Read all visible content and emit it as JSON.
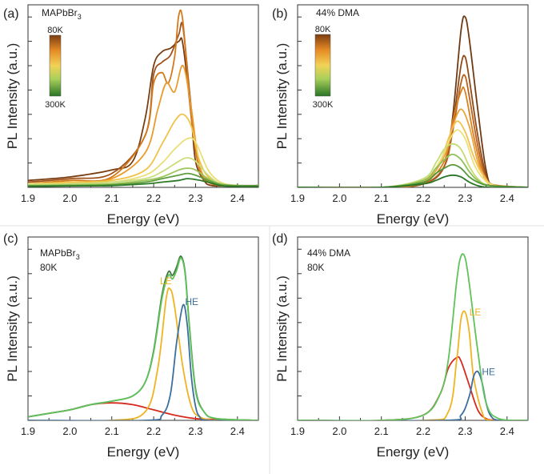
{
  "chart_data": [
    {
      "panel_label": "(a)",
      "type": "line",
      "sample": "MAPbBr",
      "sample_sub": "3",
      "legend": {
        "type": "colorbar",
        "top_label": "80K",
        "bottom_label": "300K"
      },
      "xlabel": "Energy (eV)",
      "ylabel": "PL Intensity (a.u.)",
      "xlim": [
        1.9,
        2.45
      ],
      "ylim": [
        0,
        1.05
      ],
      "xticks": [
        "1.9",
        "2.0",
        "2.1",
        "2.2",
        "2.3",
        "2.4"
      ],
      "series": [
        {
          "color": "#7a3d12",
          "x": [
            1.9,
            2.0,
            2.1,
            2.15,
            2.18,
            2.2,
            2.22,
            2.24,
            2.26,
            2.27,
            2.29,
            2.3,
            2.32,
            2.34,
            2.4,
            2.45
          ],
          "y": [
            0.04,
            0.06,
            0.1,
            0.15,
            0.4,
            0.7,
            0.78,
            0.8,
            0.84,
            0.82,
            0.4,
            0.15,
            0.04,
            0.01,
            0.01,
            0.01
          ]
        },
        {
          "color": "#a0521b",
          "x": [
            1.9,
            2.0,
            2.1,
            2.18,
            2.2,
            2.22,
            2.24,
            2.26,
            2.27,
            2.29,
            2.31,
            2.34,
            2.4,
            2.45
          ],
          "y": [
            0.03,
            0.05,
            0.08,
            0.3,
            0.65,
            0.72,
            0.76,
            0.88,
            0.92,
            0.45,
            0.1,
            0.02,
            0.01,
            0.01
          ]
        },
        {
          "color": "#d2791c",
          "x": [
            1.9,
            2.0,
            2.1,
            2.18,
            2.2,
            2.22,
            2.235,
            2.25,
            2.26,
            2.27,
            2.29,
            2.31,
            2.34,
            2.4,
            2.45
          ],
          "y": [
            0.02,
            0.04,
            0.06,
            0.3,
            0.6,
            0.66,
            0.6,
            0.75,
            0.99,
            0.95,
            0.4,
            0.1,
            0.02,
            0.01,
            0.01
          ]
        },
        {
          "color": "#e99b2e",
          "x": [
            1.9,
            2.0,
            2.1,
            2.18,
            2.21,
            2.23,
            2.25,
            2.27,
            2.29,
            2.31,
            2.34,
            2.4,
            2.45
          ],
          "y": [
            0.02,
            0.03,
            0.05,
            0.2,
            0.45,
            0.6,
            0.55,
            0.7,
            0.45,
            0.12,
            0.03,
            0.01,
            0.01
          ]
        },
        {
          "color": "#f0c347",
          "x": [
            1.9,
            2.0,
            2.1,
            2.18,
            2.22,
            2.25,
            2.27,
            2.29,
            2.31,
            2.34,
            2.4,
            2.45
          ],
          "y": [
            0.02,
            0.03,
            0.04,
            0.1,
            0.25,
            0.38,
            0.42,
            0.35,
            0.15,
            0.04,
            0.01,
            0.01
          ]
        },
        {
          "color": "#eadf77",
          "x": [
            1.9,
            2.0,
            2.1,
            2.18,
            2.22,
            2.25,
            2.28,
            2.3,
            2.33,
            2.36,
            2.4,
            2.45
          ],
          "y": [
            0.02,
            0.02,
            0.03,
            0.07,
            0.14,
            0.22,
            0.28,
            0.26,
            0.1,
            0.03,
            0.01,
            0.01
          ]
        },
        {
          "color": "#c9dd79",
          "x": [
            1.9,
            2.0,
            2.1,
            2.18,
            2.22,
            2.26,
            2.28,
            2.3,
            2.33,
            2.36,
            2.4,
            2.45
          ],
          "y": [
            0.015,
            0.02,
            0.03,
            0.05,
            0.09,
            0.15,
            0.17,
            0.15,
            0.07,
            0.02,
            0.01,
            0.01
          ]
        },
        {
          "color": "#9cc55c",
          "x": [
            1.9,
            2.0,
            2.1,
            2.18,
            2.22,
            2.26,
            2.28,
            2.3,
            2.33,
            2.36,
            2.4,
            2.45
          ],
          "y": [
            0.01,
            0.015,
            0.02,
            0.04,
            0.06,
            0.1,
            0.11,
            0.1,
            0.05,
            0.02,
            0.01,
            0.01
          ]
        },
        {
          "color": "#5e9e3c",
          "x": [
            1.9,
            2.0,
            2.1,
            2.18,
            2.22,
            2.26,
            2.28,
            2.3,
            2.33,
            2.36,
            2.4,
            2.45
          ],
          "y": [
            0.01,
            0.01,
            0.015,
            0.03,
            0.05,
            0.07,
            0.08,
            0.07,
            0.04,
            0.015,
            0.01,
            0.01
          ]
        },
        {
          "color": "#2f7a28",
          "x": [
            1.9,
            2.0,
            2.1,
            2.18,
            2.22,
            2.26,
            2.28,
            2.3,
            2.33,
            2.36,
            2.4,
            2.45
          ],
          "y": [
            0.005,
            0.008,
            0.01,
            0.02,
            0.03,
            0.04,
            0.05,
            0.045,
            0.03,
            0.01,
            0.005,
            0.005
          ]
        }
      ]
    },
    {
      "panel_label": "(b)",
      "type": "line",
      "sample": "44% DMA",
      "sample_sub": "",
      "legend": {
        "type": "colorbar",
        "top_label": "80K",
        "bottom_label": "300K"
      },
      "xlabel": "Energy (eV)",
      "ylabel": "PL Intensity (a.u.)",
      "xlim": [
        1.9,
        2.45
      ],
      "ylim": [
        0,
        1.05
      ],
      "xticks": [
        "1.9",
        "2.0",
        "2.1",
        "2.2",
        "2.3",
        "2.4"
      ],
      "series": [
        {
          "color": "#6e3a12",
          "x": [
            1.9,
            2.1,
            2.2,
            2.25,
            2.27,
            2.29,
            2.3,
            2.31,
            2.33,
            2.35,
            2.37,
            2.45
          ],
          "y": [
            0.0,
            0.0,
            0.02,
            0.12,
            0.4,
            0.9,
            0.98,
            0.85,
            0.45,
            0.1,
            0.01,
            0.0
          ]
        },
        {
          "color": "#8f4a18",
          "x": [
            1.9,
            2.1,
            2.2,
            2.25,
            2.27,
            2.29,
            2.3,
            2.31,
            2.33,
            2.35,
            2.37,
            2.45
          ],
          "y": [
            0.0,
            0.0,
            0.02,
            0.12,
            0.35,
            0.7,
            0.75,
            0.62,
            0.3,
            0.07,
            0.01,
            0.0
          ]
        },
        {
          "color": "#b8611d",
          "x": [
            1.9,
            2.1,
            2.2,
            2.25,
            2.27,
            2.29,
            2.3,
            2.31,
            2.33,
            2.35,
            2.37,
            2.45
          ],
          "y": [
            0.0,
            0.0,
            0.02,
            0.12,
            0.32,
            0.6,
            0.64,
            0.52,
            0.24,
            0.05,
            0.01,
            0.0
          ]
        },
        {
          "color": "#d9801f",
          "x": [
            1.9,
            2.1,
            2.2,
            2.25,
            2.27,
            2.29,
            2.3,
            2.32,
            2.34,
            2.36,
            2.45
          ],
          "y": [
            0.0,
            0.0,
            0.03,
            0.15,
            0.38,
            0.55,
            0.55,
            0.3,
            0.1,
            0.02,
            0.0
          ]
        },
        {
          "color": "#eba03a",
          "x": [
            1.9,
            2.1,
            2.2,
            2.25,
            2.27,
            2.29,
            2.31,
            2.33,
            2.35,
            2.37,
            2.45
          ],
          "y": [
            0.0,
            0.0,
            0.03,
            0.18,
            0.35,
            0.45,
            0.35,
            0.15,
            0.05,
            0.01,
            0.0
          ]
        },
        {
          "color": "#f2c252",
          "x": [
            1.9,
            2.1,
            2.2,
            2.24,
            2.26,
            2.28,
            2.3,
            2.32,
            2.34,
            2.37,
            2.45
          ],
          "y": [
            0.0,
            0.0,
            0.04,
            0.15,
            0.28,
            0.38,
            0.32,
            0.18,
            0.08,
            0.01,
            0.0
          ]
        },
        {
          "color": "#ece07a",
          "x": [
            1.9,
            2.1,
            2.2,
            2.24,
            2.26,
            2.28,
            2.3,
            2.32,
            2.34,
            2.37,
            2.45
          ],
          "y": [
            0.0,
            0.0,
            0.04,
            0.15,
            0.26,
            0.33,
            0.28,
            0.14,
            0.06,
            0.01,
            0.0
          ]
        },
        {
          "color": "#c4dc72",
          "x": [
            1.9,
            2.1,
            2.2,
            2.23,
            2.25,
            2.27,
            2.29,
            2.31,
            2.33,
            2.36,
            2.45
          ],
          "y": [
            0.0,
            0.0,
            0.05,
            0.14,
            0.22,
            0.25,
            0.22,
            0.12,
            0.05,
            0.01,
            0.0
          ]
        },
        {
          "color": "#8fc156",
          "x": [
            1.9,
            2.1,
            2.2,
            2.23,
            2.25,
            2.27,
            2.29,
            2.31,
            2.33,
            2.36,
            2.45
          ],
          "y": [
            0.0,
            0.0,
            0.04,
            0.11,
            0.16,
            0.19,
            0.16,
            0.09,
            0.04,
            0.01,
            0.0
          ]
        },
        {
          "color": "#56983a",
          "x": [
            1.9,
            2.1,
            2.2,
            2.23,
            2.25,
            2.27,
            2.29,
            2.31,
            2.33,
            2.36,
            2.45
          ],
          "y": [
            0.0,
            0.0,
            0.03,
            0.08,
            0.11,
            0.13,
            0.11,
            0.06,
            0.03,
            0.01,
            0.0
          ]
        },
        {
          "color": "#2a7426",
          "x": [
            1.9,
            2.1,
            2.2,
            2.23,
            2.25,
            2.27,
            2.29,
            2.31,
            2.33,
            2.36,
            2.45
          ],
          "y": [
            0.0,
            0.0,
            0.02,
            0.04,
            0.06,
            0.07,
            0.06,
            0.03,
            0.01,
            0.0,
            0.0
          ]
        }
      ]
    },
    {
      "panel_label": "(c)",
      "type": "line",
      "sample": "MAPbBr",
      "sample_sub": "3",
      "sample_temp": "80K",
      "xlabel": "Energy (eV)",
      "ylabel": "PL Intensity (a.u.)",
      "xlim": [
        1.9,
        2.45
      ],
      "ylim": [
        0,
        1.05
      ],
      "xticks": [
        "1.9",
        "2.0",
        "2.1",
        "2.2",
        "2.3",
        "2.4"
      ],
      "annotations": [
        {
          "text": "LE",
          "x": 2.215,
          "y": 0.78,
          "color": "#f0b323"
        },
        {
          "text": "HE",
          "x": 2.275,
          "y": 0.66,
          "color": "#3c6e9e"
        }
      ],
      "series": [
        {
          "name": "",
          "color": "#d62a1e",
          "x": [
            1.9,
            1.95,
            2.0,
            2.05,
            2.1,
            2.15,
            2.2,
            2.25,
            2.3,
            2.35,
            2.45
          ],
          "y": [
            0.02,
            0.04,
            0.06,
            0.09,
            0.1,
            0.09,
            0.06,
            0.03,
            0.01,
            0.005,
            0.0
          ]
        },
        {
          "name": "LE",
          "color": "#f0b323",
          "x": [
            1.9,
            2.1,
            2.18,
            2.21,
            2.23,
            2.24,
            2.25,
            2.27,
            2.29,
            2.31,
            2.35,
            2.45
          ],
          "y": [
            0.0,
            0.0,
            0.05,
            0.3,
            0.7,
            0.75,
            0.65,
            0.3,
            0.08,
            0.02,
            0.0,
            0.0
          ]
        },
        {
          "name": "HE",
          "color": "#3c6e9e",
          "x": [
            1.9,
            2.18,
            2.22,
            2.24,
            2.255,
            2.27,
            2.28,
            2.29,
            2.3,
            2.31,
            2.33,
            2.45
          ],
          "y": [
            0.0,
            0.0,
            0.03,
            0.15,
            0.45,
            0.66,
            0.55,
            0.25,
            0.08,
            0.02,
            0.0,
            0.0
          ]
        },
        {
          "name": "",
          "color": "#3d7a3f",
          "x": [
            1.9,
            1.95,
            2.0,
            2.05,
            2.1,
            2.15,
            2.18,
            2.2,
            2.22,
            2.235,
            2.245,
            2.255,
            2.265,
            2.275,
            2.285,
            2.3,
            2.32,
            2.35,
            2.45
          ],
          "y": [
            0.02,
            0.04,
            0.06,
            0.09,
            0.11,
            0.14,
            0.22,
            0.4,
            0.72,
            0.85,
            0.83,
            0.88,
            0.94,
            0.85,
            0.55,
            0.18,
            0.05,
            0.01,
            0.0
          ]
        },
        {
          "name": "",
          "color": "#5fc25a",
          "x": [
            1.9,
            1.95,
            2.0,
            2.05,
            2.1,
            2.15,
            2.18,
            2.2,
            2.22,
            2.235,
            2.245,
            2.255,
            2.265,
            2.275,
            2.285,
            2.3,
            2.32,
            2.35,
            2.45
          ],
          "y": [
            0.02,
            0.04,
            0.06,
            0.09,
            0.11,
            0.14,
            0.22,
            0.39,
            0.7,
            0.83,
            0.81,
            0.86,
            0.93,
            0.84,
            0.54,
            0.17,
            0.05,
            0.01,
            0.0
          ]
        }
      ]
    },
    {
      "panel_label": "(d)",
      "type": "line",
      "sample": "44% DMA",
      "sample_sub": "",
      "sample_temp": "80K",
      "xlabel": "Energy (eV)",
      "ylabel": "PL Intensity (a.u.)",
      "xlim": [
        1.9,
        2.45
      ],
      "ylim": [
        0,
        1.05
      ],
      "xticks": [
        "1.9",
        "2.0",
        "2.1",
        "2.2",
        "2.3",
        "2.4"
      ],
      "annotations": [
        {
          "text": "LE",
          "x": 2.31,
          "y": 0.6,
          "color": "#f0b323"
        },
        {
          "text": "HE",
          "x": 2.34,
          "y": 0.26,
          "color": "#3c6e9e"
        }
      ],
      "series": [
        {
          "name": "",
          "color": "#d62a1e",
          "x": [
            1.9,
            2.1,
            2.2,
            2.24,
            2.26,
            2.28,
            2.29,
            2.31,
            2.33,
            2.35,
            2.38,
            2.45
          ],
          "y": [
            0.0,
            0.0,
            0.03,
            0.15,
            0.3,
            0.36,
            0.34,
            0.2,
            0.06,
            0.01,
            0.0,
            0.0
          ]
        },
        {
          "name": "LE",
          "color": "#f0b323",
          "x": [
            1.9,
            2.2,
            2.26,
            2.28,
            2.29,
            2.3,
            2.31,
            2.32,
            2.34,
            2.36,
            2.45
          ],
          "y": [
            0.0,
            0.0,
            0.05,
            0.35,
            0.58,
            0.62,
            0.5,
            0.25,
            0.05,
            0.0,
            0.0
          ]
        },
        {
          "name": "HE",
          "color": "#3c6e9e",
          "x": [
            1.9,
            2.25,
            2.29,
            2.31,
            2.32,
            2.33,
            2.34,
            2.35,
            2.36,
            2.38,
            2.45
          ],
          "y": [
            0.0,
            0.0,
            0.03,
            0.14,
            0.25,
            0.28,
            0.22,
            0.1,
            0.03,
            0.0,
            0.0
          ]
        },
        {
          "name": "",
          "color": "#5fc25a",
          "x": [
            1.9,
            2.1,
            2.2,
            2.24,
            2.26,
            2.28,
            2.29,
            2.3,
            2.31,
            2.33,
            2.35,
            2.38,
            2.45
          ],
          "y": [
            0.0,
            0.0,
            0.03,
            0.15,
            0.35,
            0.8,
            0.94,
            0.93,
            0.78,
            0.4,
            0.1,
            0.01,
            0.0
          ]
        }
      ]
    }
  ]
}
